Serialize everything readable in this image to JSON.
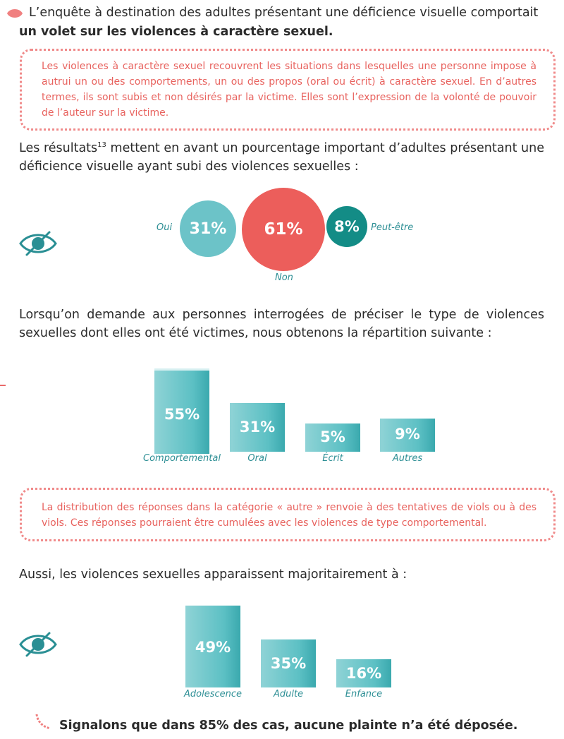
{
  "intro": {
    "line1": "L’enquête à destination des adultes présentant une déficience visuelle comportait",
    "line2": "un volet sur les violences à caractère sexuel."
  },
  "callout1": {
    "text": "Les violences à caractère sexuel recouvrent les situations dans lesquelles une personne impose à autrui un ou des comportements, un ou des propos (oral ou écrit) à caractère sexuel. En d’autres termes, ils sont subis et non désirés par la victime. Elles sont l’expression de la volonté de pouvoir de l’auteur sur la victime."
  },
  "results": {
    "prefix": "Les résultats",
    "sup": "13",
    "suffix": " mettent en avant un pourcentage important d’adultes présentant une déficience visuelle ayant subi des violences sexuelles :"
  },
  "bubbles": {
    "oui_label": "Oui",
    "oui_value": "31%",
    "non_label": "Non",
    "non_value": "61%",
    "peut_label": "Peut-être",
    "peut_value": "8%",
    "colors": {
      "oui": "#6cc3c8",
      "non": "#ec5e5b",
      "peut": "#138c86"
    }
  },
  "para2": "Lorsqu’on demande aux personnes interrogées de préciser le type de violences sexuelles dont elles ont été victimes, nous obtenons la répartition suivante :",
  "bars1": {
    "comportemental_value": "55%",
    "comportemental_label": "Comportemental",
    "oral_value": "31%",
    "oral_label": "Oral",
    "ecrit_value": "5%",
    "ecrit_label": "Écrit",
    "autres_value": "9%",
    "autres_label": "Autres"
  },
  "callout2": {
    "text": "La distribution des réponses dans la catégorie « autre » renvoie à des tentatives de viols ou à des viols. Ces réponses pourraient être cumulées avec les violences de type comportemental."
  },
  "para3": "Aussi, les violences sexuelles apparaissent majoritairement à :",
  "bars2": {
    "adolescence_value": "49%",
    "adolescence_label": "Adolescence",
    "adulte_value": "35%",
    "adulte_label": "Adulte",
    "enfance_value": "16%",
    "enfance_label": "Enfance"
  },
  "footer": "Signalons que dans 85% des cas, aucune plainte n’a été déposée.",
  "icons": {
    "bullet": "leaf-bullet-icon",
    "eye": "eye-slash-icon",
    "quote": "quote-mark-icon"
  },
  "colors": {
    "coral": "#e96a6a",
    "teal": "#2a8f94"
  }
}
